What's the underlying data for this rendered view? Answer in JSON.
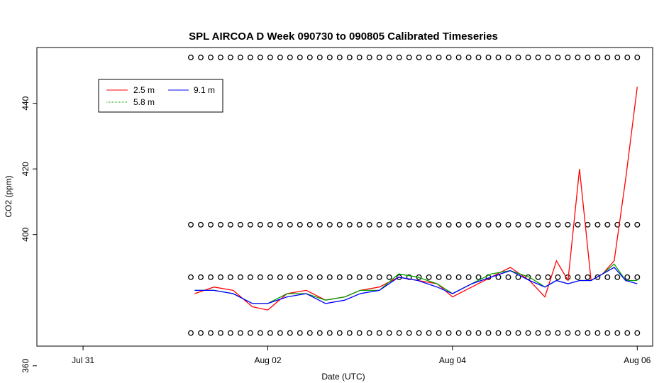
{
  "chart_data": {
    "type": "line",
    "title": "SPL AIRCOA D  Week 090730 to 090805  Calibrated Timeseries",
    "xlabel": "Date (UTC)",
    "ylabel": "CO2 (ppm)",
    "xlim": [
      "2009-07-30T12:00",
      "2009-08-06T04:00"
    ],
    "ylim": [
      366,
      457
    ],
    "x_ticks": [
      {
        "label": "Jul 31",
        "value": "2009-07-31T00:00"
      },
      {
        "label": "Aug 02",
        "value": "2009-08-02T00:00"
      },
      {
        "label": "Aug 04",
        "value": "2009-08-04T00:00"
      },
      {
        "label": "Aug 06",
        "value": "2009-08-06T00:00"
      }
    ],
    "y_ticks": [
      360,
      400,
      420,
      440
    ],
    "legend": {
      "placement": "top-left"
    },
    "series": [
      {
        "name": "2.5 m",
        "color": "#ff0000",
        "x": [
          "2009-08-01T05:00",
          "2009-08-01T10:00",
          "2009-08-01T15:00",
          "2009-08-01T20:00",
          "2009-08-02T00:00",
          "2009-08-02T05:00",
          "2009-08-02T10:00",
          "2009-08-02T15:00",
          "2009-08-02T20:00",
          "2009-08-03T00:00",
          "2009-08-03T05:00",
          "2009-08-03T10:00",
          "2009-08-03T15:00",
          "2009-08-03T20:00",
          "2009-08-04T00:00",
          "2009-08-04T05:00",
          "2009-08-04T10:00",
          "2009-08-04T15:00",
          "2009-08-04T20:00",
          "2009-08-05T00:00",
          "2009-08-05T03:00",
          "2009-08-05T06:00",
          "2009-08-05T09:00",
          "2009-08-05T12:00",
          "2009-08-05T15:00",
          "2009-08-05T18:00",
          "2009-08-05T21:00",
          "2009-08-06T00:00"
        ],
        "y": [
          382,
          384,
          383,
          378,
          377,
          382,
          383,
          380,
          381,
          383,
          384,
          387,
          386,
          385,
          381,
          384,
          387,
          390,
          386,
          381,
          392,
          386,
          420,
          386,
          388,
          392,
          417,
          445
        ]
      },
      {
        "name": "5.8 m",
        "color": "#00a000",
        "x": [
          "2009-08-01T05:00",
          "2009-08-01T10:00",
          "2009-08-01T15:00",
          "2009-08-01T20:00",
          "2009-08-02T00:00",
          "2009-08-02T05:00",
          "2009-08-02T10:00",
          "2009-08-02T15:00",
          "2009-08-02T20:00",
          "2009-08-03T00:00",
          "2009-08-03T05:00",
          "2009-08-03T10:00",
          "2009-08-03T15:00",
          "2009-08-03T20:00",
          "2009-08-04T00:00",
          "2009-08-04T05:00",
          "2009-08-04T10:00",
          "2009-08-04T15:00",
          "2009-08-04T20:00",
          "2009-08-05T00:00",
          "2009-08-05T03:00",
          "2009-08-05T06:00",
          "2009-08-05T09:00",
          "2009-08-05T12:00",
          "2009-08-05T15:00",
          "2009-08-05T18:00",
          "2009-08-05T21:00",
          "2009-08-06T00:00"
        ],
        "y": [
          383,
          383,
          382,
          379,
          379,
          382,
          382,
          380,
          381,
          383,
          383,
          388,
          387,
          385,
          382,
          385,
          388,
          389,
          387,
          384,
          386,
          385,
          386,
          386,
          388,
          391,
          386,
          386
        ]
      },
      {
        "name": "9.1 m",
        "color": "#0000ff",
        "x": [
          "2009-08-01T05:00",
          "2009-08-01T10:00",
          "2009-08-01T15:00",
          "2009-08-01T20:00",
          "2009-08-02T00:00",
          "2009-08-02T05:00",
          "2009-08-02T10:00",
          "2009-08-02T15:00",
          "2009-08-02T20:00",
          "2009-08-03T00:00",
          "2009-08-03T05:00",
          "2009-08-03T10:00",
          "2009-08-03T15:00",
          "2009-08-03T20:00",
          "2009-08-04T00:00",
          "2009-08-04T05:00",
          "2009-08-04T10:00",
          "2009-08-04T15:00",
          "2009-08-04T20:00",
          "2009-08-05T00:00",
          "2009-08-05T03:00",
          "2009-08-05T06:00",
          "2009-08-05T09:00",
          "2009-08-05T12:00",
          "2009-08-05T15:00",
          "2009-08-05T18:00",
          "2009-08-05T21:00",
          "2009-08-06T00:00"
        ],
        "y": [
          383,
          383,
          382,
          379,
          379,
          381,
          382,
          379,
          380,
          382,
          383,
          387,
          386,
          384,
          382,
          385,
          387,
          389,
          386,
          384,
          386,
          385,
          386,
          386,
          388,
          390,
          386,
          385
        ]
      }
    ],
    "marker_rows": {
      "y": [
        454,
        403,
        387,
        370
      ],
      "x_start": "2009-08-01T04:00",
      "x_end": "2009-08-06T00:00",
      "count": 46
    }
  }
}
